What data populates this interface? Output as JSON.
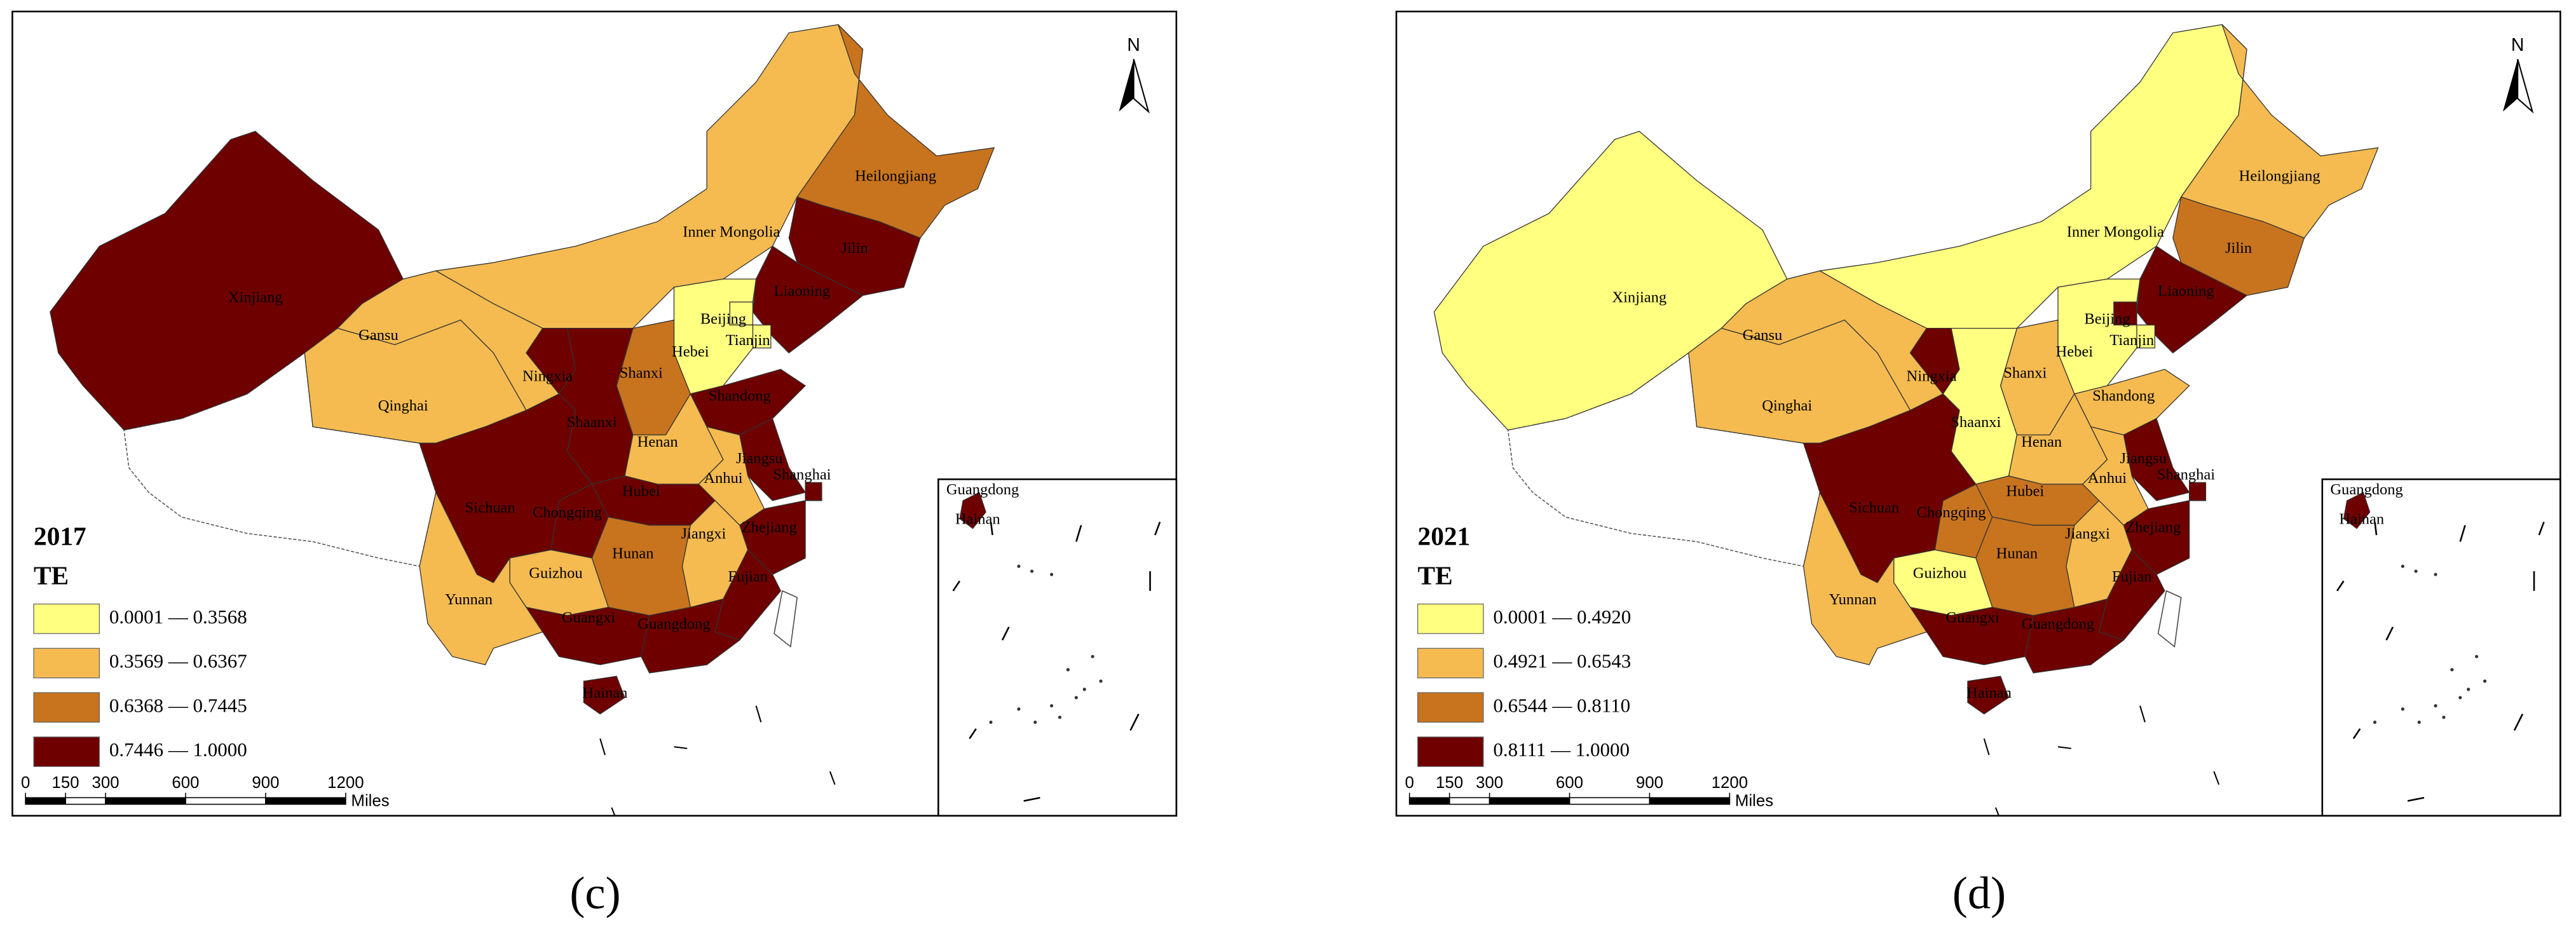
{
  "panels": [
    {
      "year": "2017",
      "legend_title": "TE",
      "caption": "(c)",
      "legend": [
        {
          "label": "0.0001 — 0.3568",
          "color": "#ffff80"
        },
        {
          "label": "0.3569 — 0.6367",
          "color": "#f5bb50"
        },
        {
          "label": "0.6368 — 0.7445",
          "color": "#c8741e"
        },
        {
          "label": "0.7446 — 1.0000",
          "color": "#6e0000"
        }
      ],
      "provinces": [
        {
          "name": "Xinjiang",
          "class": 3
        },
        {
          "name": "Gansu",
          "class": 1
        },
        {
          "name": "Qinghai",
          "class": 1
        },
        {
          "name": "Inner Mongolia",
          "class": 1
        },
        {
          "name": "Heilongjiang",
          "class": 2
        },
        {
          "name": "Jilin",
          "class": 3
        },
        {
          "name": "Liaoning",
          "class": 3
        },
        {
          "name": "Beijing",
          "class": 0
        },
        {
          "name": "Tianjin",
          "class": 0
        },
        {
          "name": "Hebei",
          "class": 0
        },
        {
          "name": "Shanxi",
          "class": 2
        },
        {
          "name": "Ningxia",
          "class": 3
        },
        {
          "name": "Shaanxi",
          "class": 3
        },
        {
          "name": "Shandong",
          "class": 3
        },
        {
          "name": "Henan",
          "class": 1
        },
        {
          "name": "Jiangsu",
          "class": 3
        },
        {
          "name": "Shanghai",
          "class": 3
        },
        {
          "name": "Anhui",
          "class": 1
        },
        {
          "name": "Hubei",
          "class": 3
        },
        {
          "name": "Chongqing",
          "class": 3
        },
        {
          "name": "Sichuan",
          "class": 3
        },
        {
          "name": "Zhejiang",
          "class": 3
        },
        {
          "name": "Jiangxi",
          "class": 1
        },
        {
          "name": "Hunan",
          "class": 2
        },
        {
          "name": "Fujian",
          "class": 3
        },
        {
          "name": "Guizhou",
          "class": 1
        },
        {
          "name": "Yunnan",
          "class": 1
        },
        {
          "name": "Guangxi",
          "class": 3
        },
        {
          "name": "Guangdong",
          "class": 3
        },
        {
          "name": "Hainan",
          "class": 3
        }
      ]
    },
    {
      "year": "2021",
      "legend_title": "TE",
      "caption": "(d)",
      "legend": [
        {
          "label": "0.0001 — 0.4920",
          "color": "#ffff80"
        },
        {
          "label": "0.4921 — 0.6543",
          "color": "#f5bb50"
        },
        {
          "label": "0.6544 — 0.8110",
          "color": "#c8741e"
        },
        {
          "label": "0.8111 — 1.0000",
          "color": "#6e0000"
        }
      ],
      "provinces": [
        {
          "name": "Xinjiang",
          "class": 0
        },
        {
          "name": "Gansu",
          "class": 1
        },
        {
          "name": "Qinghai",
          "class": 1
        },
        {
          "name": "Inner Mongolia",
          "class": 0
        },
        {
          "name": "Heilongjiang",
          "class": 1
        },
        {
          "name": "Jilin",
          "class": 2
        },
        {
          "name": "Liaoning",
          "class": 3
        },
        {
          "name": "Beijing",
          "class": 3
        },
        {
          "name": "Tianjin",
          "class": 0
        },
        {
          "name": "Hebei",
          "class": 0
        },
        {
          "name": "Shanxi",
          "class": 1
        },
        {
          "name": "Ningxia",
          "class": 3
        },
        {
          "name": "Shaanxi",
          "class": 0
        },
        {
          "name": "Shandong",
          "class": 1
        },
        {
          "name": "Henan",
          "class": 1
        },
        {
          "name": "Jiangsu",
          "class": 3
        },
        {
          "name": "Shanghai",
          "class": 3
        },
        {
          "name": "Anhui",
          "class": 1
        },
        {
          "name": "Hubei",
          "class": 2
        },
        {
          "name": "Chongqing",
          "class": 2
        },
        {
          "name": "Sichuan",
          "class": 3
        },
        {
          "name": "Zhejiang",
          "class": 3
        },
        {
          "name": "Jiangxi",
          "class": 1
        },
        {
          "name": "Hunan",
          "class": 2
        },
        {
          "name": "Fujian",
          "class": 3
        },
        {
          "name": "Guizhou",
          "class": 0
        },
        {
          "name": "Yunnan",
          "class": 1
        },
        {
          "name": "Guangxi",
          "class": 3
        },
        {
          "name": "Guangdong",
          "class": 3
        },
        {
          "name": "Hainan",
          "class": 3
        }
      ]
    }
  ],
  "north": "N",
  "scale": {
    "ticks": [
      0,
      150,
      300,
      600,
      900,
      1200
    ],
    "unit": "Miles"
  },
  "inset_labels": [
    "Guangdong",
    "Hainan"
  ]
}
